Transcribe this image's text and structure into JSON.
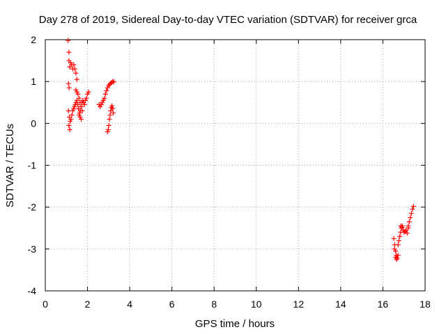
{
  "chart_data": {
    "type": "scatter",
    "title": "Day 278 of 2019, Sidereal Day-to-day VTEC variation (SDTVAR) for receiver grca",
    "xlabel": "GPS time / hours",
    "ylabel": "SDTVAR / TECUs",
    "xlim": [
      0,
      18
    ],
    "ylim": [
      -4,
      2
    ],
    "xticks": [
      "0",
      "2",
      "4",
      "6",
      "8",
      "10",
      "12",
      "14",
      "16",
      "18"
    ],
    "yticks": [
      "-4",
      "-3",
      "-2",
      "-1",
      "0",
      "1",
      "2"
    ],
    "grid": true,
    "marker": "+",
    "color": "#ff0000",
    "series": [
      {
        "name": "SDTVAR",
        "segments": [
          {
            "x": [
              1.08,
              1.12
            ],
            "y": [
              1.98,
              1.7
            ]
          },
          {
            "x": [
              1.12,
              1.16,
              1.2,
              1.25,
              1.3,
              1.35,
              1.4,
              1.45,
              1.5
            ],
            "y": [
              1.5,
              1.35,
              1.45,
              1.4,
              1.3,
              1.4,
              1.3,
              1.2,
              1.05
            ]
          },
          {
            "x": [
              1.1,
              1.13
            ],
            "y": [
              0.95,
              0.85
            ]
          },
          {
            "x": [
              1.1,
              1.14,
              1.18,
              1.22,
              1.26,
              1.3,
              1.34,
              1.38,
              1.42,
              1.46,
              1.5,
              1.54,
              1.58,
              1.62,
              1.66,
              1.7,
              1.74,
              1.78,
              1.82,
              1.86,
              1.9,
              1.95,
              2.0,
              2.05
            ],
            "y": [
              0.3,
              0.15,
              0.05,
              0.1,
              0.2,
              0.3,
              0.35,
              0.4,
              0.45,
              0.5,
              0.55,
              0.45,
              0.35,
              0.25,
              0.3,
              0.4,
              0.5,
              0.55,
              0.5,
              0.45,
              0.55,
              0.6,
              0.7,
              0.75
            ]
          },
          {
            "x": [
              1.12,
              1.16
            ],
            "y": [
              -0.05,
              -0.15
            ]
          },
          {
            "x": [
              1.45,
              1.5,
              1.55,
              1.6,
              1.65,
              1.7,
              1.75
            ],
            "y": [
              0.8,
              0.75,
              0.7,
              0.6,
              0.5,
              0.4,
              0.3
            ]
          },
          {
            "x": [
              1.6,
              1.65,
              1.7
            ],
            "y": [
              0.2,
              0.15,
              0.1
            ]
          },
          {
            "x": [
              2.55,
              2.6,
              2.65,
              2.7,
              2.75,
              2.8,
              2.85,
              2.9,
              2.95,
              3.0,
              3.05,
              3.1,
              3.15,
              3.2,
              3.25
            ],
            "y": [
              0.45,
              0.4,
              0.45,
              0.5,
              0.55,
              0.6,
              0.7,
              0.78,
              0.85,
              0.9,
              0.93,
              0.96,
              0.98,
              1.0,
              0.99
            ]
          },
          {
            "x": [
              2.95,
              2.98,
              3.01,
              3.04,
              3.07,
              3.1,
              3.13,
              3.16,
              3.19,
              3.22
            ],
            "y": [
              -0.2,
              -0.15,
              -0.05,
              0.1,
              0.2,
              0.3,
              0.38,
              0.42,
              0.35,
              0.25
            ]
          },
          {
            "x": [
              16.52,
              16.56,
              16.6,
              16.64,
              16.68,
              16.72
            ],
            "y": [
              -2.75,
              -2.9,
              -3.05,
              -3.15,
              -3.22,
              -3.15
            ]
          },
          {
            "x": [
              16.55,
              16.6,
              16.65
            ],
            "y": [
              -3.0,
              -3.2,
              -3.25
            ]
          },
          {
            "x": [
              16.72,
              16.76,
              16.8,
              16.84,
              16.88,
              16.92,
              16.96,
              17.0,
              17.05,
              17.1,
              17.15,
              17.2
            ],
            "y": [
              -2.9,
              -2.8,
              -2.7,
              -2.6,
              -2.5,
              -2.45,
              -2.55,
              -2.6,
              -2.58,
              -2.55,
              -2.62,
              -2.5
            ]
          },
          {
            "x": [
              16.85,
              16.9
            ],
            "y": [
              -2.45,
              -2.48
            ]
          },
          {
            "x": [
              17.2,
              17.25,
              17.3,
              17.35,
              17.4,
              17.45
            ],
            "y": [
              -2.45,
              -2.35,
              -2.25,
              -2.15,
              -2.05,
              -1.98
            ]
          }
        ]
      }
    ]
  }
}
